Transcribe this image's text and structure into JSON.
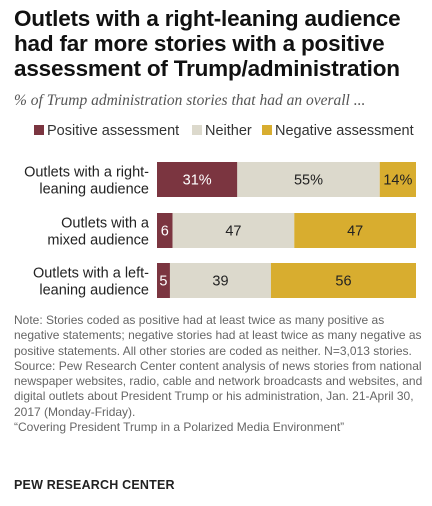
{
  "title": "Outlets with a right-leaning audience had far more stories with a positive assessment of Trump/administration",
  "subtitle": "% of Trump administration stories that had an overall ...",
  "colors": {
    "positive": "#7b3540",
    "neither": "#dcd9cc",
    "negative": "#d8ad2f"
  },
  "chart_data": {
    "type": "bar",
    "orientation": "horizontal",
    "stacked": true,
    "categories": [
      [
        "Outlets with a right-",
        "leaning audience"
      ],
      [
        "Outlets with a",
        "mixed audience"
      ],
      [
        "Outlets with a left-",
        "leaning audience"
      ]
    ],
    "series": [
      {
        "name": "Positive assessment",
        "values": [
          31,
          6,
          5
        ],
        "labels": [
          "31%",
          "6",
          "5"
        ]
      },
      {
        "name": "Neither",
        "values": [
          55,
          47,
          39
        ],
        "labels": [
          "55%",
          "47",
          "39"
        ]
      },
      {
        "name": "Negative assessment",
        "values": [
          14,
          47,
          56
        ],
        "labels": [
          "14%",
          "47",
          "56"
        ]
      }
    ],
    "xlim": [
      0,
      100
    ],
    "grid": false,
    "legend_position": "top"
  },
  "notes": {
    "note": "Note: Stories coded as positive had at least twice as many positive as negative statements; negative stories had at least twice as many negative as positive statements. All other stories are coded as neither. N=3,013 stories.",
    "source": "Source: Pew Research Center content analysis of news stories from national newspaper websites, radio, cable and network broadcasts and websites, and digital outlets about President Trump or his administration, Jan. 21-April 30, 2017 (Monday-Friday).",
    "report": "“Covering President Trump in a Polarized Media Environment”"
  },
  "footer": "PEW RESEARCH CENTER"
}
